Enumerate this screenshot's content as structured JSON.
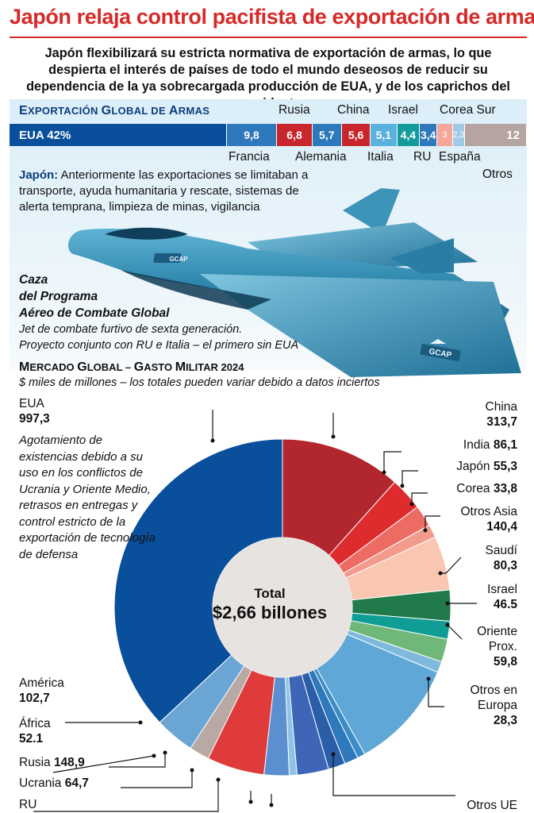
{
  "title": "Japón relaja control pacifista de exportación de armas",
  "subtitle": "Japón flexibilizará su estricta normativa de exportación de armas, lo que despierta el interés de países de todo el mundo deseosos de reducir su dependencia de la ya sobrecargada producción de EUA, y de los caprichos del presidente",
  "exports": {
    "heading_big": "E",
    "heading_rest": "XPORTACIÓN ",
    "heading_big2": "G",
    "heading_rest2": "LOBAL DE ",
    "heading_big3": "A",
    "heading_rest3": "RMAS",
    "usa_label": "EUA 42%",
    "labels_top": [
      "Rusia",
      "China",
      "Israel",
      "Corea Sur"
    ],
    "labels_bottom": [
      "Francia",
      "Alemania",
      "Italia",
      "RU",
      "España",
      "Otros"
    ]
  },
  "japan_note": {
    "bold": "Japón:",
    "text": " Anteriormente las exportaciones se limitaban a transporte, ayuda humanitaria y rescate, sistemas de alerta temprana, limpieza de minas, vigilancia"
  },
  "jet": {
    "badge": "GCAP",
    "title_lines": [
      "Caza",
      "del Programa",
      "Aéreo de Combate Global"
    ],
    "desc_lines": [
      "Jet de combate furtivo de sexta generación.",
      "Proyecto conjunto con RU e Italia – el primero sin EUA"
    ]
  },
  "market": {
    "heading_a": "M",
    "heading_b": "ERCADO ",
    "heading_c": "G",
    "heading_d": "LOBAL – ",
    "heading_e": "G",
    "heading_f": "ASTO ",
    "heading_g": "M",
    "heading_h": "ILITAR 2024",
    "note": "$ miles de millones – los totales pueden variar debido a datos inciertos",
    "usa_note": "Agotamiento de existencias debido a su uso en los conflictos de Ucrania y Oriente Medio, retrasos en entregas y control estricto de la exportación de tecnología de defensa",
    "center_title": "Total",
    "center_value": "$2,66 billones",
    "labels": {
      "usa_name": "EUA",
      "usa_value": "997,3",
      "china_name": "China",
      "china_value": "313,7",
      "india_name": "India ",
      "india_value": "86,1",
      "japon_name": "Japón ",
      "japon_value": "55,3",
      "corea_name": "Corea ",
      "corea_value": "33,8",
      "otrosasia_name": "Otros Asia",
      "otrosasia_value": "140,4",
      "saudi_name": "Saudí",
      "saudi_value": "80,3",
      "israel_name": "Israel",
      "israel_value": "46.5",
      "oriente_name1": "Oriente",
      "oriente_name2": "Prox.",
      "oriente_value": "59,8",
      "otroseuropa_name1": "Otros en",
      "otroseuropa_name2": "Europa",
      "otroseuropa_value": "28,3",
      "otrosue_name": "Otros UE",
      "america_name": "América",
      "america_value": "102,7",
      "africa_name": "África",
      "africa_value": "52.1",
      "rusia_name": "Rusia ",
      "rusia_value": "148,9",
      "ucrania_name": "Ucrania ",
      "ucrania_value": "64,7",
      "ru_name": "RU"
    }
  },
  "chart_data": [
    {
      "type": "bar",
      "title": "Exportación Global de Armas",
      "stacked": true,
      "unit": "%",
      "categories": [
        "EUA",
        "Francia",
        "Rusia",
        "Alemania",
        "China",
        "Italia",
        "Israel",
        "RU",
        "Corea Sur",
        "España",
        "Otros"
      ],
      "values": [
        42,
        9.8,
        6.8,
        5.7,
        5.6,
        5.1,
        4.4,
        3.4,
        3,
        2.3,
        12
      ],
      "value_labels": [
        "EUA 42%",
        "9,8",
        "6,8",
        "5,7",
        "5,6",
        "5,1",
        "4,4",
        "3,4",
        "3",
        "2,3",
        "12"
      ],
      "colors": [
        "#0a4f9c",
        "#2e78bc",
        "#c8262c",
        "#2e78bc",
        "#c8262c",
        "#5bb1dd",
        "#139a9a",
        "#2e78bc",
        "#f4a79a",
        "#9fc9e5",
        "#b5a49f"
      ]
    },
    {
      "type": "pie",
      "title": "Mercado Global – Gasto Militar 2024",
      "subtitle": "$ miles de millones – los totales pueden variar debido a datos inciertos",
      "donut": true,
      "total_label": "$2,66 billones",
      "slices": [
        {
          "label": "China",
          "value": 313.7,
          "color": "#b2262d"
        },
        {
          "label": "India",
          "value": 86.1,
          "color": "#dd2b2e"
        },
        {
          "label": "Japón",
          "value": 55.3,
          "color": "#ec6b63"
        },
        {
          "label": "Corea",
          "value": 33.8,
          "color": "#f29a8c"
        },
        {
          "label": "Otros Asia",
          "value": 140.4,
          "color": "#f9c6b2"
        },
        {
          "label": "Saudí",
          "value": 80.3,
          "color": "#217a4c"
        },
        {
          "label": "Israel",
          "value": 46.5,
          "color": "#0f9d96"
        },
        {
          "label": "Oriente Prox.",
          "value": 59.8,
          "color": "#6fb87a"
        },
        {
          "label": "Otros en Europa",
          "value": 28.3,
          "color": "#7fb9de"
        },
        {
          "label": "Otros UE",
          "value": 285,
          "color": "#5fa7d6"
        },
        {
          "label": "",
          "value": 20,
          "color": "#3b8bc7"
        },
        {
          "label": "",
          "value": 36,
          "color": "#2e78bc"
        },
        {
          "label": "",
          "value": 44,
          "color": "#2a5ea8"
        },
        {
          "label": "RU",
          "value": 82,
          "color": "#3f66b6"
        },
        {
          "label": "",
          "value": 20,
          "color": "#8ec2e6"
        },
        {
          "label": "Ucrania",
          "value": 64.7,
          "color": "#5c8fd0"
        },
        {
          "label": "Rusia",
          "value": 148.9,
          "color": "#df3b3b"
        },
        {
          "label": "África",
          "value": 52.1,
          "color": "#b8a9a5"
        },
        {
          "label": "América",
          "value": 102.7,
          "color": "#6aa5d4"
        },
        {
          "label": "EUA",
          "value": 997.3,
          "color": "#0a4f9c"
        }
      ]
    }
  ]
}
